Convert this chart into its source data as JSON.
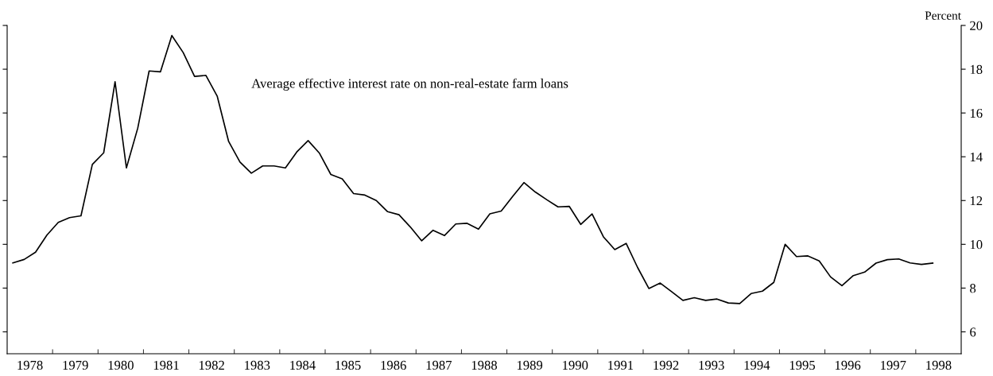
{
  "chart_data": {
    "type": "line",
    "ylabel": "Percent",
    "x": [
      1978.125,
      1978.375,
      1978.625,
      1978.875,
      1979.125,
      1979.375,
      1979.625,
      1979.875,
      1980.125,
      1980.375,
      1980.625,
      1980.875,
      1981.125,
      1981.375,
      1981.625,
      1981.875,
      1982.125,
      1982.375,
      1982.625,
      1982.875,
      1983.125,
      1983.375,
      1983.625,
      1983.875,
      1984.125,
      1984.375,
      1984.625,
      1984.875,
      1985.125,
      1985.375,
      1985.625,
      1985.875,
      1986.125,
      1986.375,
      1986.625,
      1986.875,
      1987.125,
      1987.375,
      1987.625,
      1987.875,
      1988.125,
      1988.375,
      1988.625,
      1988.875,
      1989.125,
      1989.375,
      1989.625,
      1989.875,
      1990.125,
      1990.375,
      1990.625,
      1990.875,
      1991.125,
      1991.375,
      1991.625,
      1991.875,
      1992.125,
      1992.375,
      1992.625,
      1992.875,
      1993.125,
      1993.375,
      1993.625,
      1993.875,
      1994.125,
      1994.375,
      1994.625,
      1994.875,
      1995.125,
      1995.375,
      1995.625,
      1995.875,
      1996.125,
      1996.375,
      1996.625,
      1996.875,
      1997.125,
      1997.375,
      1997.625,
      1997.875,
      1998.125,
      1998.375
    ],
    "series": [
      {
        "name": "Average effective interest rate on non-real-estate farm loans",
        "color": "#000000",
        "values": [
          9.15,
          9.31,
          9.64,
          10.42,
          11.0,
          11.22,
          11.3,
          13.65,
          14.18,
          17.43,
          13.49,
          15.31,
          17.92,
          17.88,
          19.54,
          18.76,
          17.67,
          17.72,
          16.76,
          14.7,
          13.76,
          13.25,
          13.58,
          13.58,
          13.49,
          14.22,
          14.74,
          14.16,
          13.19,
          12.99,
          12.32,
          12.25,
          12.0,
          11.49,
          11.35,
          10.79,
          10.16,
          10.64,
          10.4,
          10.93,
          10.96,
          10.69,
          11.39,
          11.52,
          12.18,
          12.82,
          12.39,
          12.04,
          11.71,
          11.73,
          10.91,
          11.39,
          10.34,
          9.76,
          10.04,
          8.95,
          7.98,
          8.23,
          7.84,
          7.44,
          7.56,
          7.44,
          7.5,
          7.32,
          7.29,
          7.75,
          7.86,
          8.26,
          10.0,
          9.44,
          9.47,
          9.24,
          8.51,
          8.11,
          8.57,
          8.73,
          9.14,
          9.3,
          9.33,
          9.15,
          9.08,
          9.14
        ]
      }
    ],
    "xlim": [
      1978,
      1999
    ],
    "xticks": [
      {
        "value": 1979,
        "label": null
      },
      {
        "value": 1980,
        "label": null
      },
      {
        "value": 1981,
        "label": null
      },
      {
        "value": 1982,
        "label": null
      },
      {
        "value": 1983,
        "label": null
      },
      {
        "value": 1984,
        "label": null
      },
      {
        "value": 1985,
        "label": null
      },
      {
        "value": 1986,
        "label": null
      },
      {
        "value": 1987,
        "label": null
      },
      {
        "value": 1988,
        "label": null
      },
      {
        "value": 1989,
        "label": null
      },
      {
        "value": 1990,
        "label": null
      },
      {
        "value": 1991,
        "label": null
      },
      {
        "value": 1992,
        "label": null
      },
      {
        "value": 1993,
        "label": null
      },
      {
        "value": 1994,
        "label": null
      },
      {
        "value": 1995,
        "label": null
      },
      {
        "value": 1996,
        "label": null
      },
      {
        "value": 1997,
        "label": null
      },
      {
        "value": 1998,
        "label": null
      },
      {
        "value": 1978.5,
        "label": "1978"
      },
      {
        "value": 1979.5,
        "label": "1979"
      },
      {
        "value": 1980.5,
        "label": "1980"
      },
      {
        "value": 1981.5,
        "label": "1981"
      },
      {
        "value": 1982.5,
        "label": "1982"
      },
      {
        "value": 1983.5,
        "label": "1983"
      },
      {
        "value": 1984.5,
        "label": "1984"
      },
      {
        "value": 1985.5,
        "label": "1985"
      },
      {
        "value": 1986.5,
        "label": "1986"
      },
      {
        "value": 1987.5,
        "label": "1987"
      },
      {
        "value": 1988.5,
        "label": "1988"
      },
      {
        "value": 1989.5,
        "label": "1989"
      },
      {
        "value": 1990.5,
        "label": "1990"
      },
      {
        "value": 1991.5,
        "label": "1991"
      },
      {
        "value": 1992.5,
        "label": "1992"
      },
      {
        "value": 1993.5,
        "label": "1993"
      },
      {
        "value": 1994.5,
        "label": "1994"
      },
      {
        "value": 1995.5,
        "label": "1995"
      },
      {
        "value": 1996.5,
        "label": "1996"
      },
      {
        "value": 1997.5,
        "label": "1997"
      },
      {
        "value": 1998.5,
        "label": "1998"
      }
    ],
    "ylim": [
      5,
      20
    ],
    "yticks": [
      6,
      8,
      10,
      12,
      14,
      16,
      18,
      20
    ],
    "grid": false,
    "legend": false,
    "marker": "none",
    "line_style": "solid"
  }
}
